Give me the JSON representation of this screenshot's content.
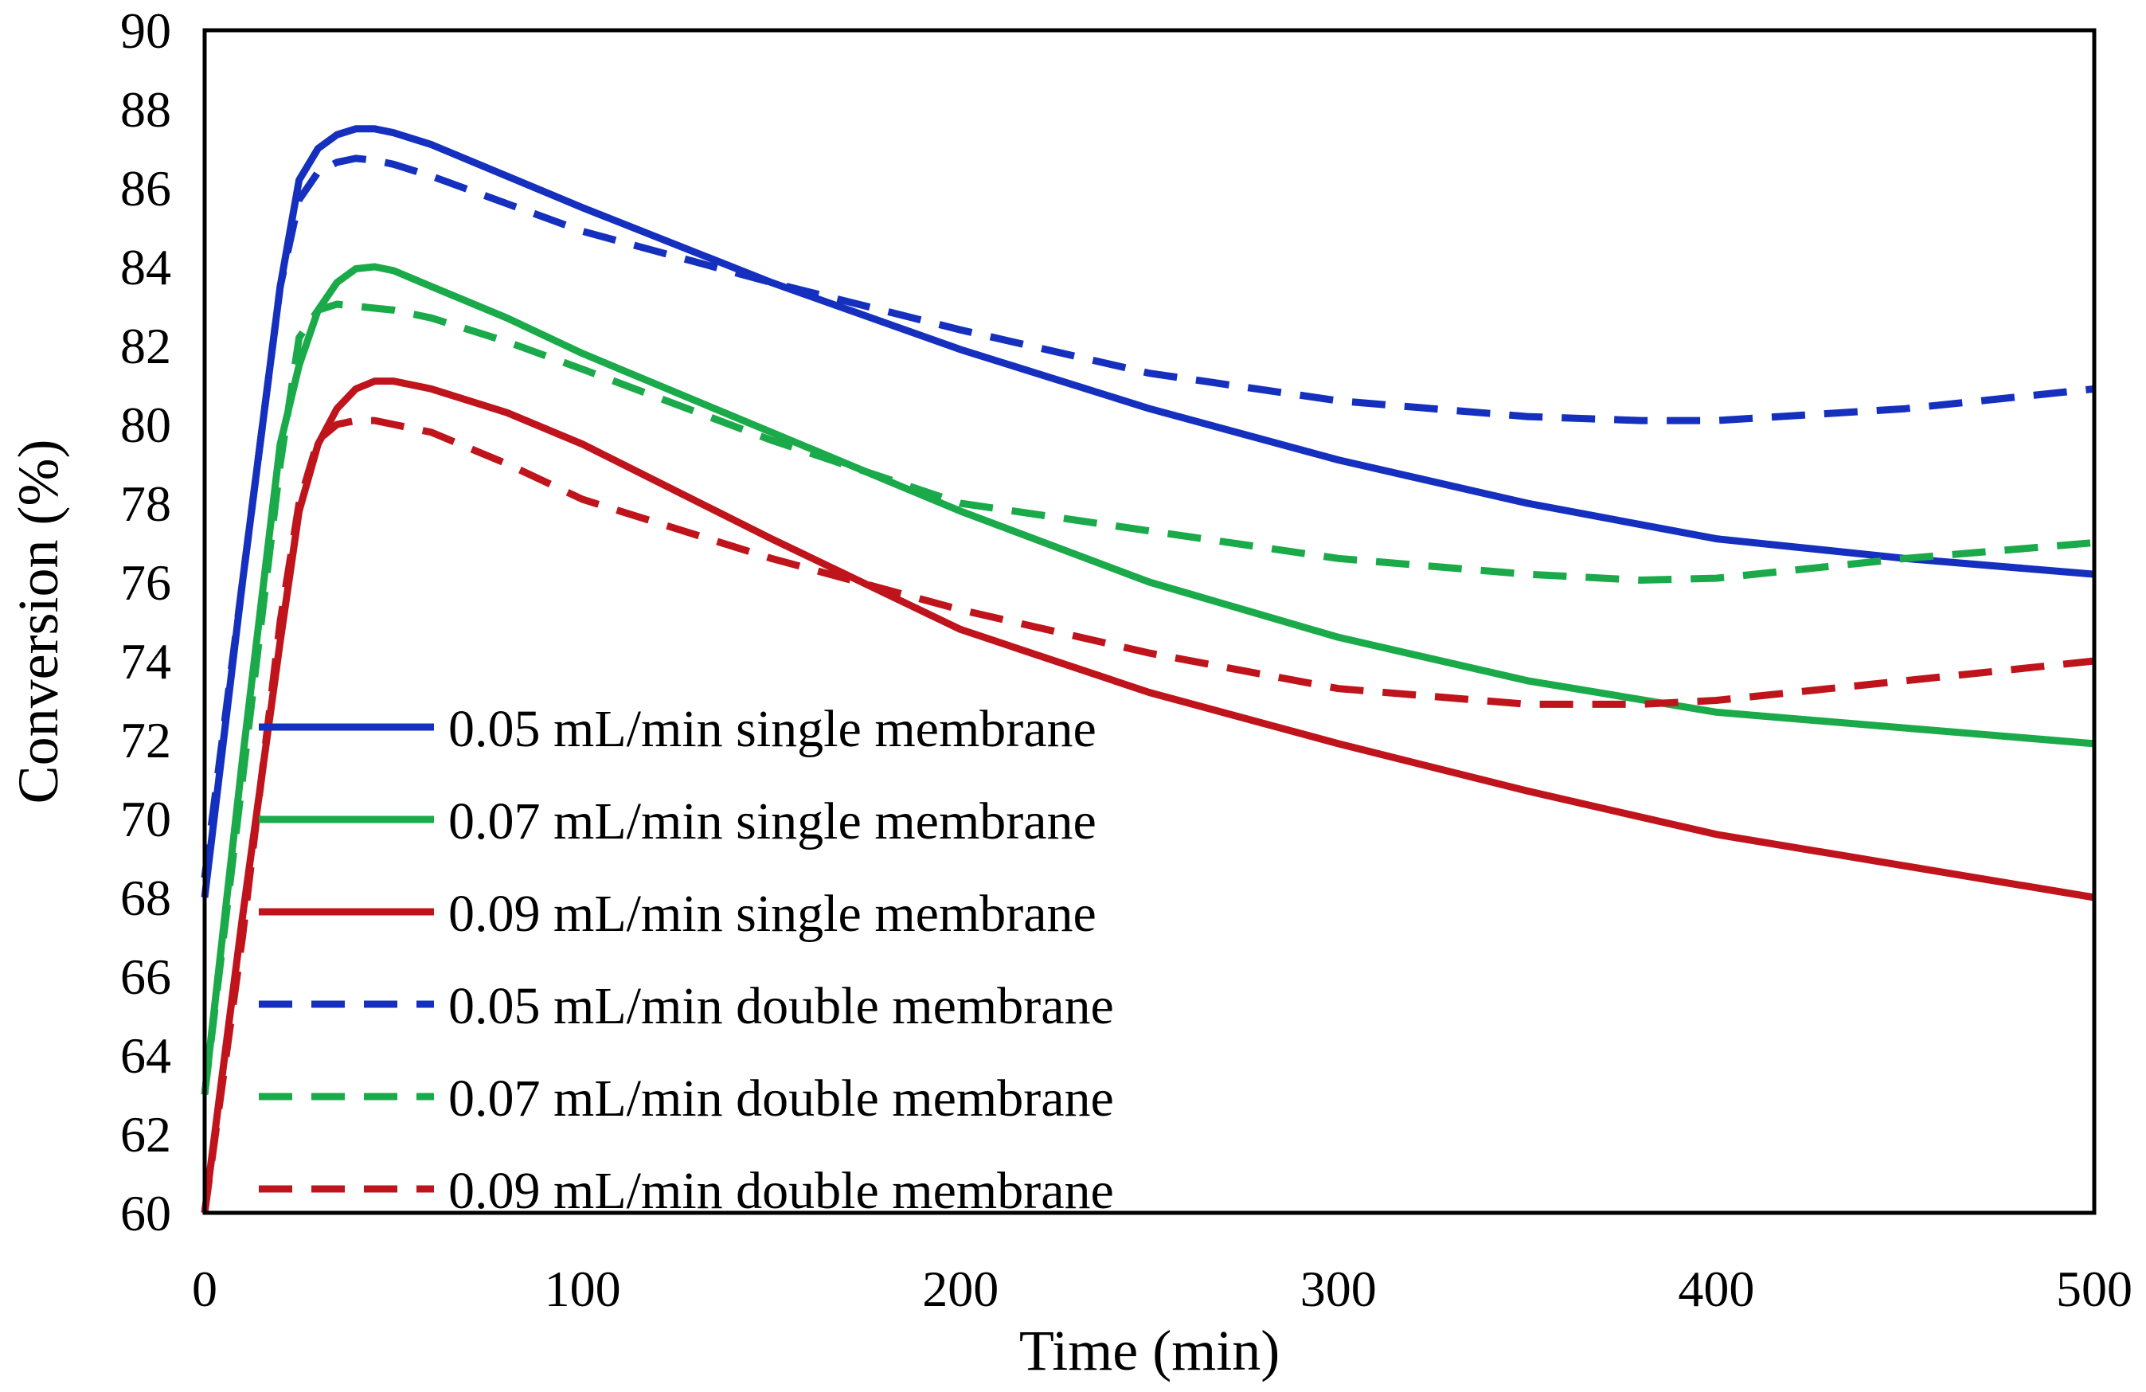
{
  "chart_data": {
    "type": "line",
    "title": "",
    "xlabel": "Time (min)",
    "ylabel": "Conversion (%)",
    "xlim": [
      0,
      500
    ],
    "ylim": [
      60,
      90
    ],
    "xticks": [
      "0",
      "100",
      "200",
      "300",
      "400",
      "500"
    ],
    "yticks": [
      "60",
      "62",
      "64",
      "66",
      "68",
      "70",
      "72",
      "74",
      "76",
      "78",
      "80",
      "82",
      "84",
      "86",
      "88",
      "90"
    ],
    "grid": false,
    "legend_position": "bottom-left",
    "series": [
      {
        "name": "0.05 mL/min single membrane",
        "color": "#1530BF",
        "dash": "solid",
        "x": [
          0,
          10,
          20,
          25,
          30,
          35,
          40,
          45,
          50,
          60,
          80,
          100,
          150,
          200,
          250,
          300,
          350,
          400,
          450,
          500
        ],
        "y": [
          68.0,
          76.0,
          83.5,
          86.2,
          87.0,
          87.35,
          87.5,
          87.5,
          87.4,
          87.1,
          86.3,
          85.5,
          83.6,
          81.9,
          80.4,
          79.1,
          78.0,
          77.1,
          76.6,
          76.2
        ]
      },
      {
        "name": "0.07 mL/min single membrane",
        "color": "#1BAA4A",
        "dash": "solid",
        "x": [
          0,
          10,
          20,
          25,
          30,
          35,
          40,
          45,
          50,
          60,
          80,
          100,
          150,
          200,
          250,
          300,
          350,
          400,
          450,
          500
        ],
        "y": [
          63.0,
          71.5,
          79.5,
          81.5,
          82.9,
          83.6,
          83.95,
          84.0,
          83.9,
          83.5,
          82.7,
          81.8,
          79.8,
          77.8,
          76.0,
          74.6,
          73.5,
          72.7,
          72.3,
          71.9
        ]
      },
      {
        "name": "0.09 mL/min single membrane",
        "color": "#C0141C",
        "dash": "solid",
        "x": [
          0,
          10,
          20,
          25,
          30,
          35,
          40,
          45,
          50,
          60,
          80,
          100,
          150,
          200,
          250,
          300,
          350,
          400,
          450,
          500
        ],
        "y": [
          60.0,
          67.5,
          74.5,
          77.8,
          79.5,
          80.4,
          80.9,
          81.1,
          81.1,
          80.9,
          80.3,
          79.5,
          77.1,
          74.8,
          73.2,
          71.9,
          70.7,
          69.6,
          68.8,
          68.0
        ]
      },
      {
        "name": "0.05 mL/min double membrane",
        "color": "#1530BF",
        "dash": "dashed",
        "x": [
          0,
          10,
          20,
          25,
          30,
          35,
          40,
          45,
          50,
          60,
          80,
          100,
          150,
          200,
          250,
          300,
          350,
          380,
          400,
          450,
          500
        ],
        "y": [
          68.5,
          76.0,
          83.5,
          85.7,
          86.4,
          86.65,
          86.75,
          86.7,
          86.6,
          86.3,
          85.6,
          84.9,
          83.6,
          82.4,
          81.3,
          80.6,
          80.2,
          80.1,
          80.1,
          80.4,
          80.9
        ]
      },
      {
        "name": "0.07 mL/min double membrane",
        "color": "#1BAA4A",
        "dash": "dashed",
        "x": [
          0,
          10,
          20,
          25,
          30,
          35,
          40,
          45,
          50,
          60,
          80,
          100,
          150,
          200,
          250,
          300,
          350,
          380,
          400,
          450,
          500
        ],
        "y": [
          63.0,
          71.0,
          79.0,
          82.2,
          82.9,
          83.05,
          83.0,
          82.95,
          82.9,
          82.7,
          82.1,
          81.4,
          79.6,
          78.0,
          77.3,
          76.6,
          76.2,
          76.05,
          76.1,
          76.6,
          77.0
        ]
      },
      {
        "name": "0.09 mL/min double membrane",
        "color": "#C0141C",
        "dash": "dashed",
        "x": [
          0,
          10,
          20,
          25,
          30,
          35,
          40,
          45,
          50,
          60,
          80,
          100,
          150,
          200,
          250,
          300,
          350,
          380,
          400,
          450,
          500
        ],
        "y": [
          60.0,
          67.0,
          75.0,
          78.0,
          79.6,
          80.0,
          80.1,
          80.1,
          80.0,
          79.8,
          79.0,
          78.1,
          76.6,
          75.3,
          74.2,
          73.3,
          72.9,
          72.9,
          73.0,
          73.5,
          74.0
        ]
      }
    ]
  }
}
